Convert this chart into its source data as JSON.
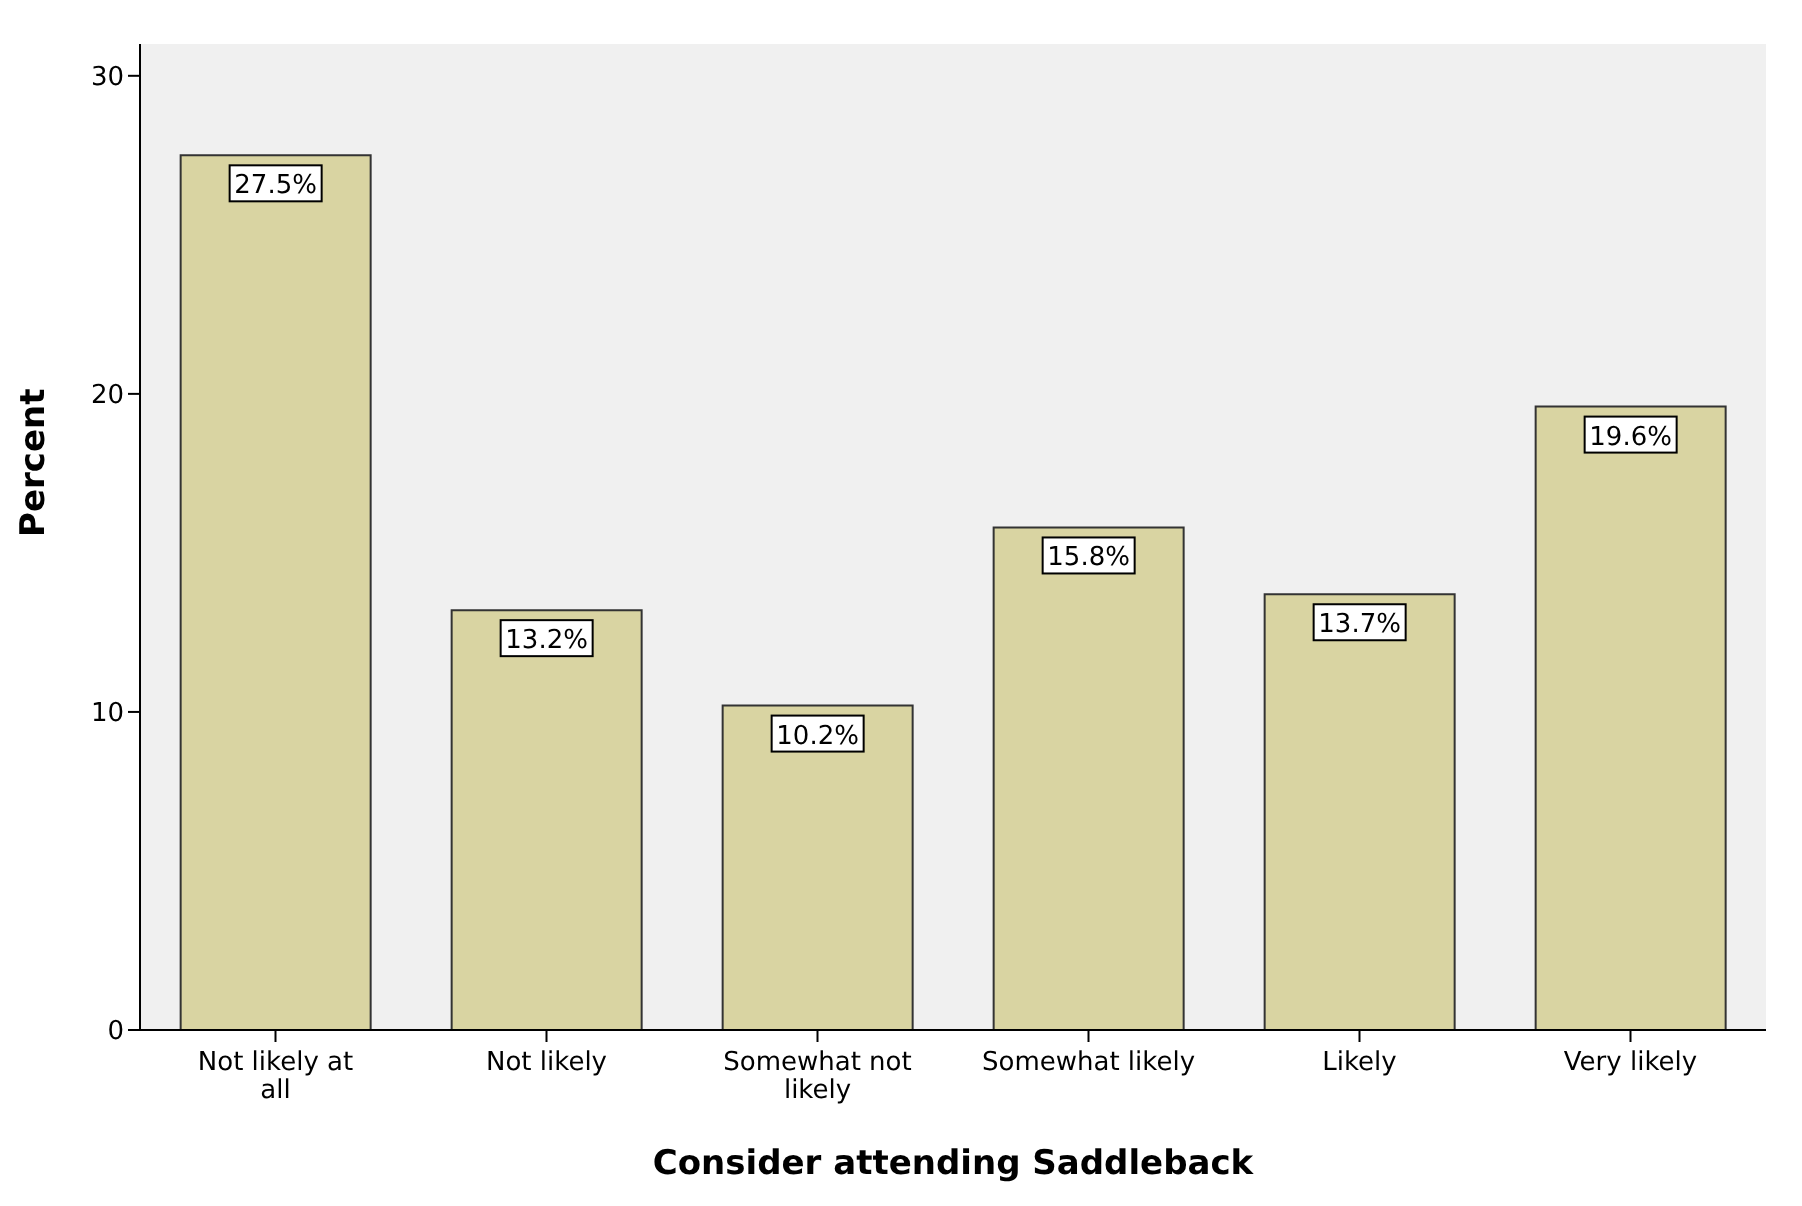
{
  "chart_data": {
    "type": "bar",
    "xlabel": "Consider attending Saddleback",
    "ylabel": "Percent",
    "categories": [
      "Not likely at all",
      "Not likely",
      "Somewhat not likely",
      "Somewhat likely",
      "Likely",
      "Very likely"
    ],
    "values": [
      27.5,
      13.2,
      10.2,
      15.8,
      13.7,
      19.6
    ],
    "value_labels": [
      "27.5%",
      "13.2%",
      "10.2%",
      "15.8%",
      "13.7%",
      "19.6%"
    ],
    "color": "#d9d4a2",
    "ylim": [
      0,
      31
    ],
    "yticks": [
      0,
      10,
      20,
      30
    ],
    "grid": false,
    "legend": false
  }
}
